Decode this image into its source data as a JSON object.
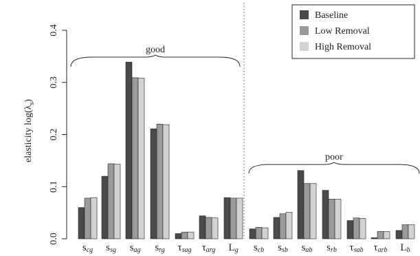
{
  "chart_data": {
    "type": "bar",
    "ylabel_main": "elasticity log(λ",
    "ylabel_sub": "s",
    "ylabel_close": ")",
    "ylim": [
      0,
      0.4
    ],
    "yticks": [
      "0.0",
      "0.1",
      "0.2",
      "0.3",
      "0.4"
    ],
    "legend_position": "top-right",
    "series": [
      {
        "name": "Baseline",
        "color": "#4a4a4a"
      },
      {
        "name": "Low Removal",
        "color": "#9a9a9a"
      },
      {
        "name": "High Removal",
        "color": "#d2d2d2"
      }
    ],
    "groups": [
      {
        "label": "good"
      },
      {
        "label": "poor"
      }
    ],
    "categories": [
      {
        "main": "s",
        "sub": "cg",
        "values": [
          0.06,
          0.078,
          0.079
        ]
      },
      {
        "main": "s",
        "sub": "sg",
        "values": [
          0.12,
          0.144,
          0.143
        ]
      },
      {
        "main": "s",
        "sub": "ag",
        "values": [
          0.339,
          0.309,
          0.308
        ]
      },
      {
        "main": "s",
        "sub": "rg",
        "values": [
          0.211,
          0.22,
          0.219
        ]
      },
      {
        "main": "τ",
        "sub": "sag",
        "values": [
          0.01,
          0.013,
          0.013
        ]
      },
      {
        "main": "τ",
        "sub": "arg",
        "values": [
          0.044,
          0.041,
          0.04
        ]
      },
      {
        "main": "L",
        "sub": "g",
        "values": [
          0.079,
          0.078,
          0.078
        ]
      },
      {
        "main": "s",
        "sub": "cb",
        "values": [
          0.019,
          0.022,
          0.021
        ]
      },
      {
        "main": "s",
        "sub": "sb",
        "values": [
          0.041,
          0.048,
          0.051
        ]
      },
      {
        "main": "s",
        "sub": "ab",
        "values": [
          0.131,
          0.106,
          0.106
        ]
      },
      {
        "main": "s",
        "sub": "rb",
        "values": [
          0.093,
          0.076,
          0.076
        ]
      },
      {
        "main": "τ",
        "sub": "sab",
        "values": [
          0.035,
          0.04,
          0.039
        ]
      },
      {
        "main": "τ",
        "sub": "arb",
        "values": [
          0.002,
          0.014,
          0.014
        ]
      },
      {
        "main": "L",
        "sub": "b",
        "values": [
          0.016,
          0.027,
          0.027
        ]
      }
    ]
  }
}
